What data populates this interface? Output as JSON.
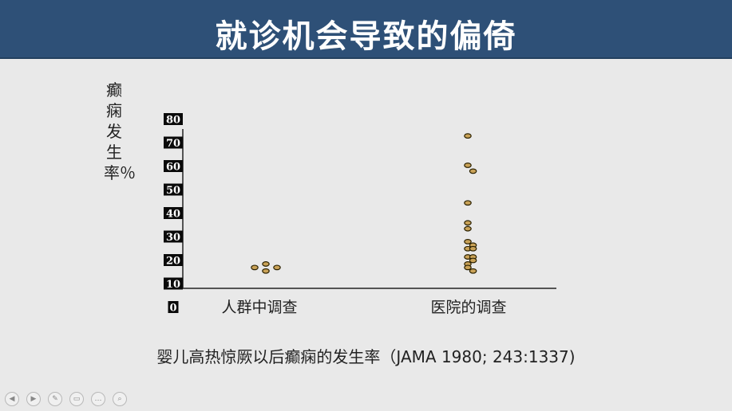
{
  "slide": {
    "title": "就诊机会导致的偏倚",
    "ylabel": "癫痫发生率％",
    "caption": "婴儿高热惊厥以后癫痫的发生率（JAMA 1980; 243:1337)"
  },
  "chart_data": {
    "type": "scatter",
    "title": "",
    "xlabel": "",
    "ylabel": "癫痫发生率％",
    "categories": [
      "人群中调查",
      "医院的调查"
    ],
    "yticks": [
      "0",
      "10",
      "20",
      "30",
      "40",
      "50",
      "60",
      "70",
      "80"
    ],
    "ylim": [
      0,
      80
    ],
    "grid": false,
    "legend": "none",
    "series": [
      {
        "category": "人群中调查",
        "points": [
          {
            "offset": -1,
            "y": 17
          },
          {
            "offset": 0,
            "y": 18.5
          },
          {
            "offset": 0,
            "y": 15.5
          },
          {
            "offset": 1,
            "y": 17
          }
        ]
      },
      {
        "category": "医院的调查",
        "points": [
          {
            "offset": 0,
            "y": 73
          },
          {
            "offset": 0,
            "y": 60.5
          },
          {
            "offset": 1,
            "y": 58
          },
          {
            "offset": 0,
            "y": 44.5
          },
          {
            "offset": 0,
            "y": 36
          },
          {
            "offset": 0,
            "y": 33.5
          },
          {
            "offset": 0,
            "y": 28
          },
          {
            "offset": 1,
            "y": 26.5
          },
          {
            "offset": 0,
            "y": 25
          },
          {
            "offset": 1,
            "y": 25
          },
          {
            "offset": 0,
            "y": 21.5
          },
          {
            "offset": 1,
            "y": 21.5
          },
          {
            "offset": 1,
            "y": 20
          },
          {
            "offset": 0,
            "y": 18.5
          },
          {
            "offset": 0,
            "y": 17
          },
          {
            "offset": 1,
            "y": 15.5
          }
        ]
      }
    ],
    "colors": {
      "marker_fill": "#c9a257",
      "marker_stroke": "#2a2000",
      "tick_bg": "#0a0a0a",
      "axis": "#222222"
    }
  },
  "nav": {
    "buttons": [
      {
        "name": "prev-slide-button",
        "icon": "arrow-left-icon",
        "glyph": "◀"
      },
      {
        "name": "next-slide-button",
        "icon": "arrow-right-icon",
        "glyph": "▶"
      },
      {
        "name": "pen-tool-button",
        "icon": "pen-icon",
        "glyph": "✎"
      },
      {
        "name": "slides-view-button",
        "icon": "slides-icon",
        "glyph": "▭"
      },
      {
        "name": "more-options-button",
        "icon": "ellipsis-icon",
        "glyph": "…"
      },
      {
        "name": "zoom-button",
        "icon": "magnifier-icon",
        "glyph": "⌕"
      }
    ]
  }
}
